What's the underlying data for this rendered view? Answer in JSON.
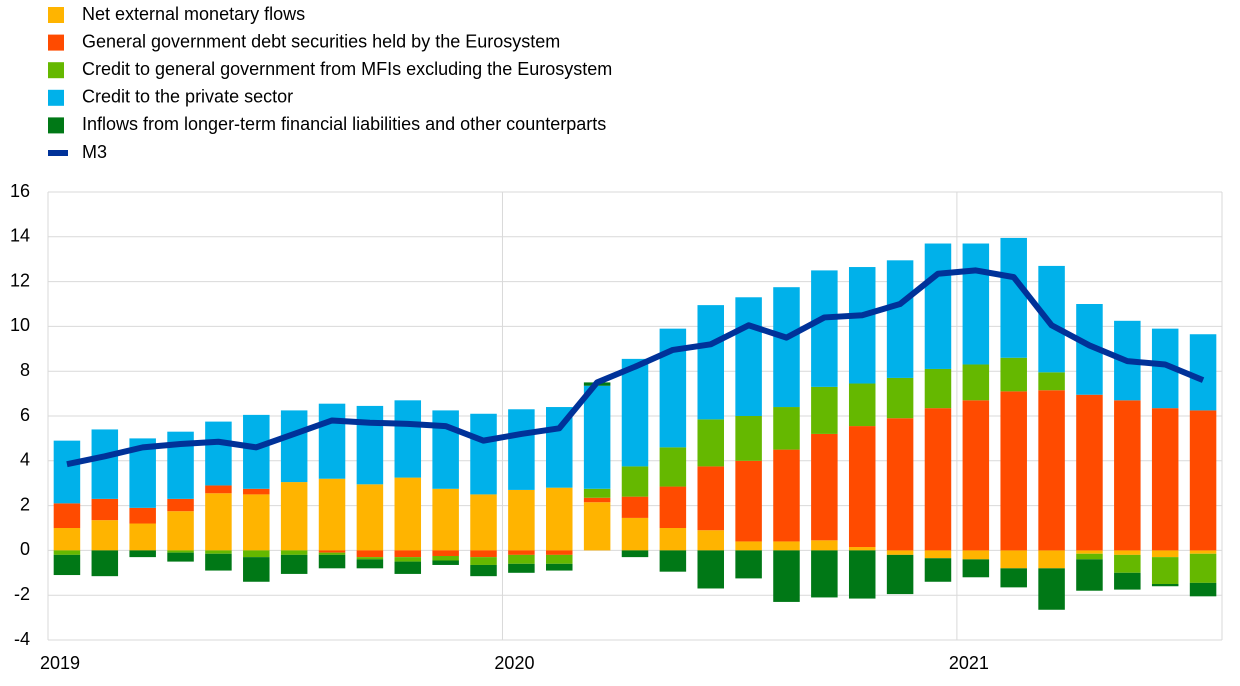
{
  "chart_data": {
    "type": "bar",
    "categories": [
      "2019",
      null,
      null,
      null,
      null,
      null,
      null,
      null,
      null,
      null,
      null,
      null,
      "2020",
      null,
      null,
      null,
      null,
      null,
      null,
      null,
      null,
      null,
      null,
      null,
      "2021",
      null,
      null,
      null,
      null,
      null,
      null
    ],
    "stacked": true,
    "series": [
      {
        "name": "Net external monetary flows",
        "color": "#ffb400",
        "values": [
          1.0,
          1.35,
          1.2,
          1.75,
          2.55,
          2.5,
          3.05,
          3.2,
          2.95,
          3.25,
          2.75,
          2.5,
          2.7,
          2.8,
          2.15,
          1.45,
          1.0,
          0.9,
          0.4,
          0.4,
          0.45,
          0.15,
          -0.2,
          -0.35,
          -0.4,
          -0.8,
          -0.8,
          -0.15,
          -0.2,
          -0.3,
          -0.15
        ]
      },
      {
        "name": "General government debt securities held by the Eurosystem",
        "color": "#ff4b00",
        "values": [
          1.1,
          0.95,
          0.7,
          0.55,
          0.35,
          0.25,
          0.0,
          -0.1,
          -0.3,
          -0.3,
          -0.25,
          -0.3,
          -0.2,
          -0.2,
          0.2,
          0.95,
          1.85,
          2.85,
          3.6,
          4.1,
          4.75,
          5.4,
          5.9,
          6.35,
          6.7,
          7.1,
          7.15,
          6.95,
          6.7,
          6.35,
          6.25
        ]
      },
      {
        "name": "Credit to general government from MFIs excluding the Eurosystem",
        "color": "#65b800",
        "values": [
          -0.2,
          0.0,
          0.0,
          -0.1,
          -0.15,
          -0.3,
          -0.2,
          -0.1,
          -0.1,
          -0.2,
          -0.2,
          -0.35,
          -0.4,
          -0.4,
          0.4,
          1.35,
          1.75,
          2.1,
          2.0,
          1.9,
          2.1,
          1.9,
          1.8,
          1.75,
          1.6,
          1.5,
          0.8,
          -0.25,
          -0.8,
          -1.2,
          -1.3
        ]
      },
      {
        "name": "Credit to the private sector",
        "color": "#00b1ea",
        "values": [
          2.8,
          3.1,
          3.1,
          3.0,
          2.85,
          3.3,
          3.2,
          3.35,
          3.5,
          3.45,
          3.5,
          3.6,
          3.6,
          3.6,
          4.6,
          4.8,
          5.3,
          5.1,
          5.3,
          5.35,
          5.2,
          5.2,
          5.25,
          5.6,
          5.4,
          5.35,
          4.75,
          4.05,
          3.55,
          3.55,
          3.4
        ]
      },
      {
        "name": "Inflows from longer-term financial liabilities and other counterparts",
        "color": "#007816",
        "values": [
          -0.9,
          -1.15,
          -0.3,
          -0.4,
          -0.75,
          -1.1,
          -0.85,
          -0.6,
          -0.4,
          -0.55,
          -0.2,
          -0.5,
          -0.4,
          -0.3,
          0.15,
          -0.3,
          -0.95,
          -1.7,
          -1.25,
          -2.3,
          -2.1,
          -2.15,
          -1.75,
          -1.05,
          -0.8,
          -0.85,
          -1.85,
          -1.4,
          -0.75,
          -0.1,
          -0.6
        ]
      },
      {
        "name": "M3",
        "type": "line",
        "color": "#003299",
        "values": [
          3.85,
          4.2,
          4.6,
          4.75,
          4.85,
          4.6,
          5.2,
          5.8,
          5.7,
          5.65,
          5.55,
          4.9,
          5.2,
          5.45,
          7.5,
          8.2,
          8.95,
          9.2,
          10.05,
          9.5,
          10.4,
          10.5,
          11.0,
          12.35,
          12.5,
          12.2,
          10.05,
          9.15,
          8.45,
          8.3,
          7.6
        ]
      }
    ],
    "ylim": [
      -4,
      16
    ],
    "yticks": [
      -4,
      -2,
      0,
      2,
      4,
      6,
      8,
      10,
      12,
      14,
      16
    ],
    "grid": true
  }
}
